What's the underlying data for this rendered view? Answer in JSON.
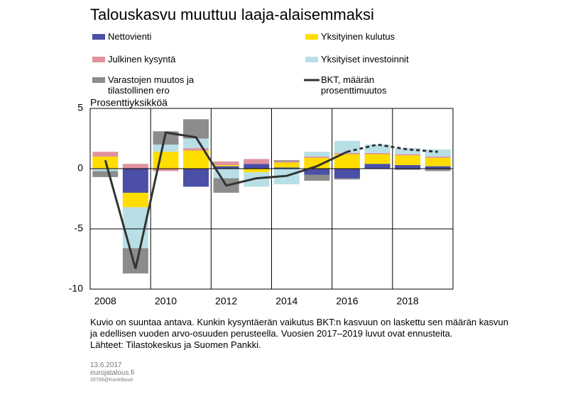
{
  "chart_data": {
    "type": "bar",
    "title": "Talouskasvu muuttuu laaja-alaisemmaksi",
    "y_label": "Prosenttiyksikköä",
    "categories": [
      "2008",
      null,
      "2010",
      null,
      "2012",
      null,
      "2014",
      null,
      "2016",
      null,
      "2018",
      null
    ],
    "series": [
      {
        "name": "Nettovienti",
        "color": "#4b4fa6",
        "values": [
          0,
          -2.0,
          0,
          -1.5,
          0.2,
          0.4,
          0.1,
          -0.5,
          -0.8,
          0.4,
          0.3,
          0.2
        ]
      },
      {
        "name": "Yksityinen kulutus",
        "color": "#ffdd00",
        "values": [
          1.0,
          -1.2,
          1.4,
          1.5,
          0.1,
          -0.3,
          0.4,
          0.9,
          1.2,
          0.8,
          0.8,
          0.7
        ]
      },
      {
        "name": "Julkinen kysyntä",
        "color": "#e0929e",
        "values": [
          0.4,
          0.4,
          -0.2,
          0.2,
          0.3,
          0.4,
          0.1,
          0.1,
          0.1,
          0.1,
          0.1,
          0.1
        ]
      },
      {
        "name": "Yksityiset investoinnit",
        "color": "#b8dfe6",
        "values": [
          -0.2,
          -3.4,
          0.6,
          0.8,
          -0.8,
          -1.2,
          -1.3,
          0.4,
          1.0,
          0.7,
          0.5,
          0.6
        ]
      },
      {
        "name": "Varastojen muutos ja tilastollinen ero",
        "color": "#8c8c8c",
        "values": [
          -0.5,
          -2.1,
          1.1,
          1.6,
          -1.2,
          0,
          0.1,
          -0.5,
          -0.1,
          0,
          -0.1,
          -0.2
        ]
      },
      {
        "name": "BKT, määrän prosenttimuutos",
        "type": "line",
        "color": "#333333",
        "forecast_start": 8,
        "values": [
          0.7,
          -8.3,
          3.0,
          2.6,
          -1.4,
          -0.8,
          -0.6,
          0.2,
          1.4,
          2.0,
          1.6,
          1.4
        ]
      }
    ],
    "ylim": [
      -10,
      5
    ],
    "yticks": [
      -10,
      -5,
      0,
      5
    ],
    "grid": true,
    "note": "Kuvio on suuntaa antava. Kunkin kysyntäerän vaikutus BKT:n kasvuun on laskettu sen määrän kasvun ja edellisen vuoden arvo-osuuden perusteella. Vuosien 2017–2019 luvut ovat ennusteita.",
    "sources": "Lähteet: Tilastokeskus ja Suomen Pankki.",
    "date": "13.6.2017",
    "site": "eurojatalous.fi",
    "code": "20756@Kontribuuti"
  }
}
